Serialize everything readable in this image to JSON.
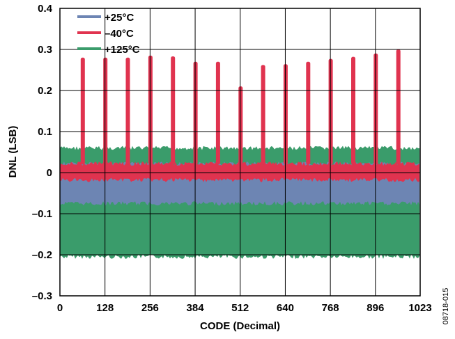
{
  "chart_data": {
    "type": "area",
    "xlabel": "CODE (Decimal)",
    "ylabel": "DNL (LSB)",
    "xlim": [
      0,
      1023
    ],
    "ylim": [
      -0.3,
      0.4
    ],
    "xticks": [
      0,
      128,
      256,
      384,
      512,
      640,
      768,
      896,
      1023
    ],
    "xtick_labels": [
      "0",
      "128",
      "256",
      "384",
      "512",
      "640",
      "768",
      "896",
      "1023"
    ],
    "yticks": [
      -0.3,
      -0.2,
      -0.1,
      0,
      0.1,
      0.2,
      0.3,
      0.4
    ],
    "ytick_labels": [
      "–0.3",
      "–0.2",
      "–0.1",
      "0",
      "0.1",
      "0.2",
      "0.3",
      "0.4"
    ],
    "grid": true,
    "legend_position": "top-left",
    "series": [
      {
        "name": "+125°C",
        "color": "#3a9c6b",
        "band_min": -0.205,
        "band_max": 0.06
      },
      {
        "name": "+25°C",
        "color": "#6d85b3",
        "band_min": -0.075,
        "band_max": 0.022
      },
      {
        "name": "–40°C",
        "color": "#e0334f",
        "band_min": -0.018,
        "band_max": 0.022
      }
    ],
    "spikes": {
      "series": "–40°C",
      "x": [
        64,
        128,
        192,
        256,
        320,
        384,
        448,
        512,
        576,
        640,
        704,
        768,
        832,
        896,
        960
      ],
      "y": [
        0.28,
        0.28,
        0.28,
        0.285,
        0.283,
        0.27,
        0.27,
        0.21,
        0.262,
        0.264,
        0.27,
        0.277,
        0.282,
        0.29,
        0.3
      ]
    }
  },
  "figure_id": "08718-015",
  "legend": {
    "item1": "+25°C",
    "item2": "–40°C",
    "item3": "+125°C"
  }
}
